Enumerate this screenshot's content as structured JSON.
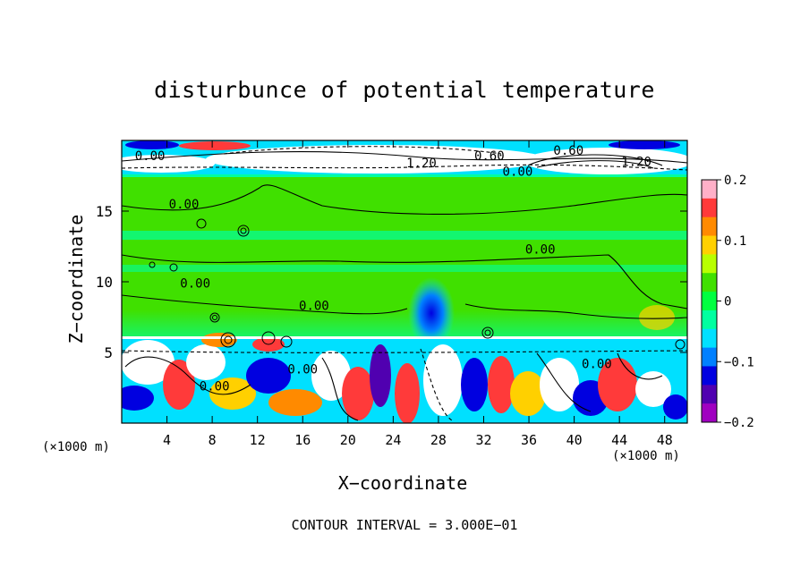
{
  "chart_data": {
    "type": "heatmap",
    "title": "disturbunce of potential temperature",
    "xlabel": "X−coordinate",
    "ylabel": "Z−coordinate",
    "x_unit_left": "(×1000 m)",
    "x_unit_right": "(×1000 m)",
    "xlim": [
      0,
      50
    ],
    "ylim": [
      0,
      20
    ],
    "x_ticks": [
      4,
      8,
      12,
      16,
      20,
      24,
      28,
      32,
      36,
      40,
      44,
      48
    ],
    "x_tick_labels": [
      "4",
      "8",
      "12",
      "16",
      "20",
      "24",
      "28",
      "32",
      "36",
      "40",
      "44",
      "48"
    ],
    "y_ticks": [
      5,
      10,
      15
    ],
    "y_tick_labels": [
      "5",
      "10",
      "15"
    ],
    "colorbar": {
      "ticks": [
        0.2,
        0.1,
        0,
        -0.1,
        -0.2
      ],
      "tick_labels": [
        "0.2",
        "0.1",
        "0",
        "−0.1",
        "−0.2"
      ],
      "range": [
        -0.2,
        0.2
      ],
      "colors": [
        "#ffb0c8",
        "#ff3a3a",
        "#ff8a00",
        "#ffd000",
        "#b8ff00",
        "#40e000",
        "#00ff40",
        "#00ffa0",
        "#00e0ff",
        "#0080ff",
        "#0000e0",
        "#5000b0",
        "#a000c0"
      ]
    },
    "contour_labels": [
      {
        "text": "0.00",
        "x": 2.5,
        "y": 18.6
      },
      {
        "text": "1.20",
        "x": 26.5,
        "y": 18.1
      },
      {
        "text": "0.60",
        "x": 32.5,
        "y": 18.6
      },
      {
        "text": "0.60",
        "x": 39.5,
        "y": 19.0
      },
      {
        "text": "1.20",
        "x": 45.5,
        "y": 18.2
      },
      {
        "text": "0.00",
        "x": 35.0,
        "y": 17.5
      },
      {
        "text": "0.00",
        "x": 5.5,
        "y": 15.2
      },
      {
        "text": "0.00",
        "x": 37.0,
        "y": 12.0
      },
      {
        "text": "0.00",
        "x": 6.5,
        "y": 9.6
      },
      {
        "text": "0.00",
        "x": 17.0,
        "y": 8.0
      },
      {
        "text": "0.00",
        "x": 16.0,
        "y": 3.5
      },
      {
        "text": "0.00",
        "x": 42.0,
        "y": 3.9
      },
      {
        "text": "0.00",
        "x": 8.2,
        "y": 2.3
      }
    ],
    "contour_interval_text": "CONTOUR INTERVAL = 3.000E−01"
  },
  "colors": {
    "background": "#ffffff",
    "axis": "#000000"
  }
}
